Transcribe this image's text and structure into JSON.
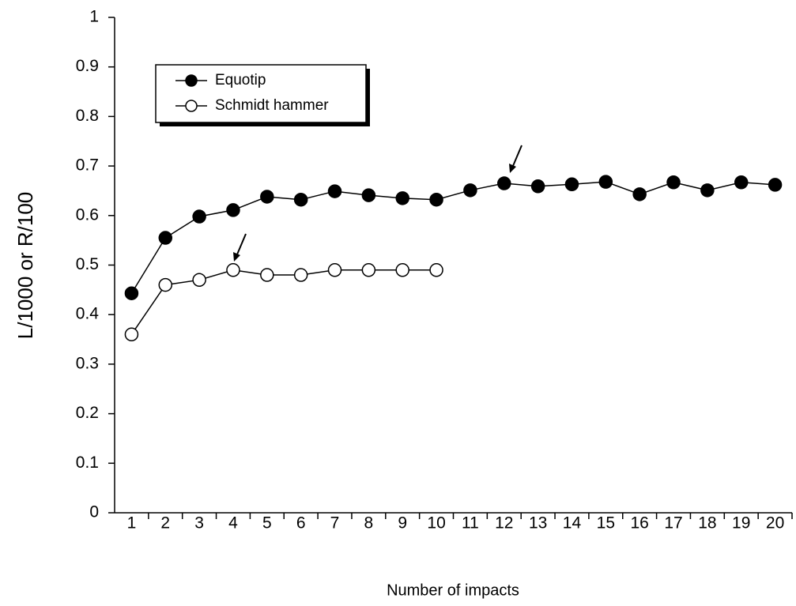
{
  "chart_data": {
    "type": "line",
    "x_label": "Number of impacts",
    "y_label": "L/1000 or R/100",
    "categories": [
      "1",
      "2",
      "3",
      "4",
      "5",
      "6",
      "7",
      "8",
      "9",
      "10",
      "11",
      "12",
      "13",
      "14",
      "15",
      "16",
      "17",
      "18",
      "19",
      "20"
    ],
    "series": [
      {
        "name": "Equotip",
        "color": "#000000",
        "marker": "filled",
        "values": [
          0.443,
          0.555,
          0.598,
          0.611,
          0.638,
          0.632,
          0.649,
          0.641,
          0.635,
          0.632,
          0.651,
          0.665,
          0.659,
          0.663,
          0.668,
          0.643,
          0.667,
          0.651,
          0.667,
          0.662
        ]
      },
      {
        "name": "Schmidt hammer",
        "color": "#000000",
        "marker": "open",
        "values": [
          0.36,
          0.46,
          0.47,
          0.49,
          0.48,
          0.48,
          0.49,
          0.49,
          0.49,
          0.49,
          null,
          null,
          null,
          null,
          null,
          null,
          null,
          null,
          null,
          null
        ]
      }
    ],
    "ylim": [
      0,
      1
    ],
    "yticks": [
      0,
      0.1,
      0.2,
      0.3,
      0.4,
      0.5,
      0.6,
      0.7,
      0.8,
      0.9,
      1
    ],
    "grid": false,
    "legend": "upper left"
  }
}
